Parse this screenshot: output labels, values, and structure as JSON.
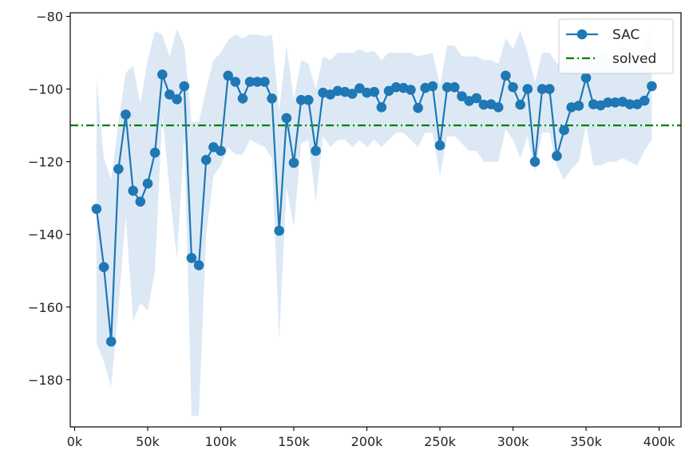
{
  "chart_data": {
    "type": "line",
    "xlim": [
      -3000,
      415000
    ],
    "ylim": [
      -193,
      -79
    ],
    "x_ticks": [
      0,
      50000,
      100000,
      150000,
      200000,
      250000,
      300000,
      350000,
      400000
    ],
    "x_tick_labels": [
      "0k",
      "50k",
      "100k",
      "150k",
      "200k",
      "250k",
      "300k",
      "350k",
      "400k"
    ],
    "y_ticks": [
      -80,
      -100,
      -120,
      -140,
      -160,
      -180
    ],
    "y_tick_labels": [
      "−80",
      "−100",
      "−120",
      "−140",
      "−160",
      "−180"
    ],
    "grid": false,
    "legend_position": "top-right",
    "series": [
      {
        "name": "SAC",
        "color": "#1f77b4",
        "marker": "circle",
        "shaded_band": true,
        "band_color": "#dce9f5",
        "x": [
          15000,
          20000,
          25000,
          30000,
          35000,
          40000,
          45000,
          50000,
          55000,
          60000,
          65000,
          70000,
          75000,
          80000,
          85000,
          90000,
          95000,
          100000,
          105000,
          110000,
          115000,
          120000,
          125000,
          130000,
          135000,
          140000,
          145000,
          150000,
          155000,
          160000,
          165000,
          170000,
          175000,
          180000,
          185000,
          190000,
          195000,
          200000,
          205000,
          210000,
          215000,
          220000,
          225000,
          230000,
          235000,
          240000,
          245000,
          250000,
          255000,
          260000,
          265000,
          270000,
          275000,
          280000,
          285000,
          290000,
          295000,
          300000,
          305000,
          310000,
          315000,
          320000,
          325000,
          330000,
          335000,
          340000,
          345000,
          350000,
          355000,
          360000,
          365000,
          370000,
          375000,
          380000,
          385000,
          390000,
          395000
        ],
        "y": [
          -133,
          -149,
          -169.5,
          -122,
          -107,
          -128,
          -131,
          -126,
          -117.5,
          -96,
          -101.5,
          -102.8,
          -99.2,
          -146.5,
          -148.5,
          -119.5,
          -116,
          -117,
          -96.3,
          -98,
          -102.6,
          -98,
          -98,
          -98,
          -102.6,
          -139,
          -108,
          -120.3,
          -103,
          -103,
          -117,
          -101,
          -101.5,
          -100.5,
          -100.8,
          -101.3,
          -99.8,
          -101,
          -100.8,
          -105,
          -100.5,
          -99.5,
          -99.7,
          -100.2,
          -105.2,
          -99.7,
          -99.2,
          -115.5,
          -99.5,
          -99.5,
          -102,
          -103.3,
          -102.5,
          -104.3,
          -104.2,
          -105,
          -96.3,
          -99.5,
          -104.3,
          -100,
          -120,
          -100,
          -100,
          -118.4,
          -111.3,
          -105,
          -104.6,
          -96.9,
          -104.2,
          -104.5,
          -103.7,
          -103.7,
          -103.5,
          -104.2,
          -104.2,
          -103.2,
          -99.2
        ],
        "band_upper": [
          -97,
          -119,
          -125,
          -109,
          -95.5,
          -93.5,
          -104,
          -92,
          -84,
          -85,
          -91,
          -83.5,
          -88,
          -109,
          -109,
          -100,
          -92,
          -90,
          -86.5,
          -85,
          -86,
          -85,
          -85,
          -85.5,
          -85,
          -106,
          -88,
          -103,
          -92,
          -93,
          -100,
          -91,
          -92,
          -90,
          -90,
          -90,
          -89,
          -90,
          -89.5,
          -92,
          -90,
          -90,
          -90,
          -90,
          -91,
          -90.5,
          -90,
          -99,
          -88,
          -88,
          -91,
          -91,
          -91,
          -92,
          -92,
          -93,
          -86,
          -89,
          -84,
          -90,
          -98,
          -90,
          -90,
          -93,
          -92,
          -93,
          -93,
          -85,
          -91,
          -90,
          -90,
          -90,
          -88.5,
          -89,
          -90,
          -88,
          -84
        ],
        "band_lower": [
          -170,
          -175,
          -182,
          -160,
          -135,
          -164,
          -159,
          -161,
          -150,
          -107,
          -128,
          -147,
          -113,
          -190,
          -190,
          -140,
          -124,
          -121,
          -116,
          -118,
          -118,
          -114,
          -115,
          -116,
          -119,
          -169,
          -127,
          -138,
          -115,
          -114,
          -131,
          -113,
          -116,
          -114,
          -114,
          -116,
          -114,
          -116,
          -114,
          -116,
          -114,
          -112,
          -112,
          -114,
          -116,
          -112,
          -112,
          -124,
          -113,
          -113,
          -115,
          -117,
          -117,
          -120,
          -120,
          -120,
          -111,
          -114,
          -119,
          -113,
          -123,
          -112,
          -112,
          -121,
          -125,
          -122,
          -120,
          -110,
          -121,
          -121,
          -120,
          -120,
          -119,
          -120,
          -121,
          -117,
          -114
        ]
      },
      {
        "name": "solved",
        "color": "#008000",
        "line_style": "dash-dot",
        "y_constant": -110
      }
    ]
  }
}
